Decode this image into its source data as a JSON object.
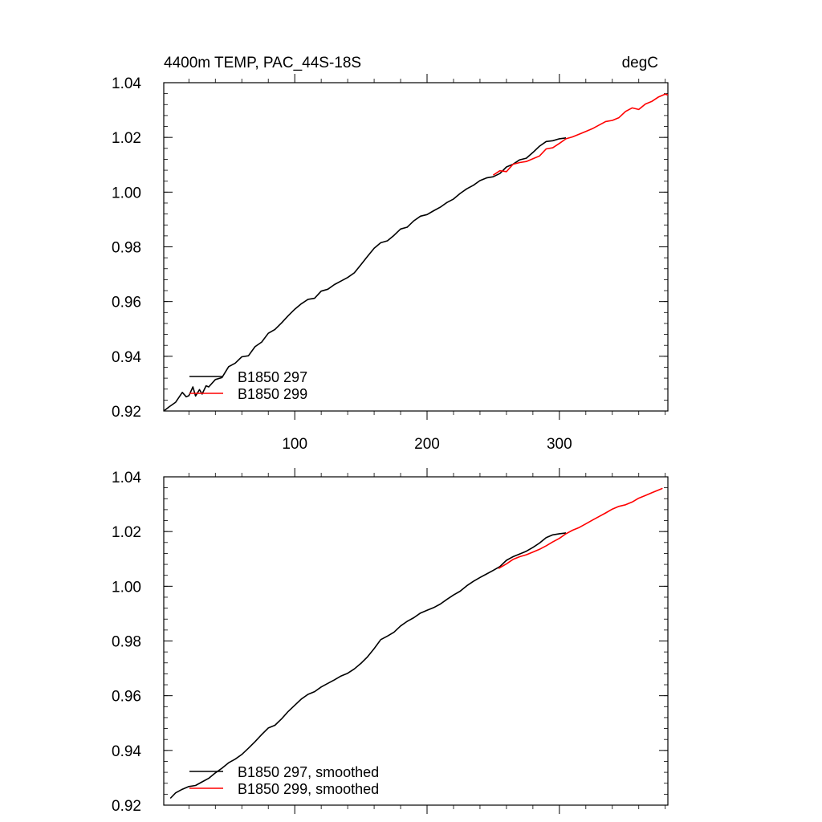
{
  "chart_data": [
    {
      "type": "line",
      "title_left": "4400m TEMP, PAC_44S-18S",
      "title_right": "degC",
      "xlim": [
        1,
        382
      ],
      "ylim": [
        0.92,
        1.04
      ],
      "x_ticks": [
        100,
        200,
        300
      ],
      "x_tick_labels": [
        "100",
        "200",
        "300"
      ],
      "y_ticks": [
        0.92,
        0.94,
        0.96,
        0.98,
        1.0,
        1.02,
        1.04
      ],
      "y_tick_labels": [
        "0.92",
        "0.94",
        "0.96",
        "0.98",
        "1.00",
        "1.02",
        "1.04"
      ],
      "legend_position": "bottom-left",
      "colors": {
        "series_297": "#000000",
        "series_299": "#ff0000"
      },
      "series": [
        {
          "name": "B1850 297",
          "color": "#000000",
          "x": [
            1,
            5,
            10,
            15,
            18,
            20,
            23,
            25,
            28,
            30,
            33,
            35,
            40,
            45,
            50,
            55,
            60,
            65,
            70,
            75,
            80,
            85,
            90,
            95,
            100,
            105,
            110,
            115,
            120,
            125,
            130,
            135,
            140,
            145,
            150,
            155,
            160,
            165,
            170,
            175,
            180,
            185,
            190,
            195,
            200,
            205,
            210,
            215,
            220,
            225,
            230,
            235,
            240,
            245,
            250,
            255,
            260,
            265,
            270,
            275,
            280,
            285,
            290,
            295,
            300,
            305
          ],
          "y": [
            0.92,
            0.9215,
            0.9232,
            0.9268,
            0.9252,
            0.9256,
            0.9288,
            0.9255,
            0.9278,
            0.9262,
            0.9292,
            0.9288,
            0.9315,
            0.9322,
            0.9362,
            0.9375,
            0.9398,
            0.9402,
            0.9435,
            0.9452,
            0.9484,
            0.9498,
            0.9522,
            0.9548,
            0.9572,
            0.9592,
            0.9608,
            0.9612,
            0.9638,
            0.9645,
            0.9662,
            0.9675,
            0.9688,
            0.9705,
            0.9735,
            0.9765,
            0.9795,
            0.9815,
            0.9822,
            0.9842,
            0.9865,
            0.9872,
            0.9895,
            0.9912,
            0.9918,
            0.9932,
            0.9945,
            0.9962,
            0.9975,
            0.9995,
            1.0012,
            1.0025,
            1.0042,
            1.0052,
            1.0056,
            1.0068,
            1.0092,
            1.0102,
            1.0118,
            1.0124,
            1.0145,
            1.0168,
            1.0185,
            1.0188,
            1.0195,
            1.0198
          ]
        },
        {
          "name": "B1850 299",
          "color": "#ff0000",
          "x": [
            250,
            255,
            260,
            265,
            270,
            275,
            280,
            285,
            290,
            295,
            300,
            305,
            310,
            315,
            320,
            325,
            330,
            335,
            340,
            345,
            350,
            355,
            360,
            365,
            370,
            375,
            380,
            382
          ],
          "y": [
            1.0062,
            1.0078,
            1.0075,
            1.0102,
            1.0108,
            1.0112,
            1.0122,
            1.0132,
            1.0158,
            1.0162,
            1.0178,
            1.0195,
            1.0202,
            1.0212,
            1.0222,
            1.0232,
            1.0245,
            1.0258,
            1.0262,
            1.0272,
            1.0295,
            1.0308,
            1.0302,
            1.0322,
            1.0332,
            1.0348,
            1.0358,
            1.0355
          ]
        }
      ]
    },
    {
      "type": "line",
      "xlim": [
        1,
        382
      ],
      "ylim": [
        0.92,
        1.04
      ],
      "x_ticks": [
        100,
        200,
        300
      ],
      "y_ticks": [
        0.92,
        0.94,
        0.96,
        0.98,
        1.0,
        1.02,
        1.04
      ],
      "y_tick_labels": [
        "0.92",
        "0.94",
        "0.96",
        "0.98",
        "1.00",
        "1.02",
        "1.04"
      ],
      "legend_position": "bottom-left",
      "series": [
        {
          "name": "B1850 297, smoothed",
          "color": "#000000",
          "x": [
            6,
            10,
            15,
            20,
            25,
            30,
            35,
            40,
            45,
            50,
            55,
            60,
            65,
            70,
            75,
            80,
            85,
            90,
            95,
            100,
            105,
            110,
            115,
            120,
            125,
            130,
            135,
            140,
            145,
            150,
            155,
            160,
            165,
            170,
            175,
            180,
            185,
            190,
            195,
            200,
            205,
            210,
            215,
            220,
            225,
            230,
            235,
            240,
            245,
            250,
            255,
            260,
            265,
            270,
            275,
            280,
            285,
            290,
            295,
            300,
            305
          ],
          "y": [
            0.9225,
            0.9245,
            0.9258,
            0.9268,
            0.9272,
            0.9285,
            0.9298,
            0.9318,
            0.9335,
            0.9355,
            0.9368,
            0.9385,
            0.9408,
            0.9432,
            0.9458,
            0.9482,
            0.9492,
            0.9515,
            0.9542,
            0.9565,
            0.9588,
            0.9605,
            0.9615,
            0.9632,
            0.9645,
            0.9658,
            0.9672,
            0.9682,
            0.9698,
            0.9718,
            0.9742,
            0.9772,
            0.9805,
            0.9818,
            0.9832,
            0.9855,
            0.9872,
            0.9885,
            0.9902,
            0.9912,
            0.9922,
            0.9935,
            0.9952,
            0.9968,
            0.9982,
            1.0002,
            1.0018,
            1.0032,
            1.0045,
            1.0058,
            1.0072,
            1.0095,
            1.0108,
            1.0118,
            1.0128,
            1.0142,
            1.0158,
            1.0178,
            1.0188,
            1.0192,
            1.0195
          ]
        },
        {
          "name": "B1850 299, smoothed",
          "color": "#ff0000",
          "x": [
            254,
            260,
            265,
            270,
            275,
            280,
            285,
            290,
            295,
            300,
            305,
            310,
            315,
            320,
            325,
            330,
            335,
            340,
            345,
            350,
            355,
            360,
            365,
            370,
            375,
            378
          ],
          "y": [
            1.0065,
            1.0082,
            1.0098,
            1.0108,
            1.0115,
            1.0125,
            1.0135,
            1.0148,
            1.0162,
            1.0175,
            1.0192,
            1.0205,
            1.0215,
            1.0228,
            1.0242,
            1.0255,
            1.0268,
            1.0282,
            1.0292,
            1.0298,
            1.0308,
            1.0322,
            1.0332,
            1.0342,
            1.0352,
            1.0358
          ]
        }
      ]
    }
  ]
}
